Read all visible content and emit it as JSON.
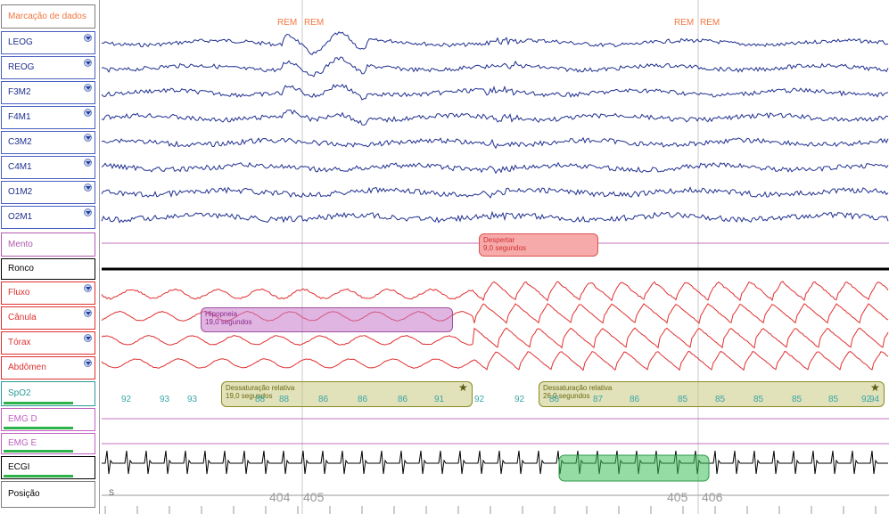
{
  "channels": [
    {
      "label": "Marcação de dados",
      "color": "#f07840",
      "border": "#7f7f7f",
      "dropdown": false,
      "bar": ""
    },
    {
      "label": "LEOG",
      "color": "#1f2f8f",
      "border": "#4a5fc0",
      "dropdown": true,
      "bar": ""
    },
    {
      "label": "REOG",
      "color": "#1f2f8f",
      "border": "#4a5fc0",
      "dropdown": true,
      "bar": ""
    },
    {
      "label": "F3M2",
      "color": "#1f2f8f",
      "border": "#4a5fc0",
      "dropdown": true,
      "bar": ""
    },
    {
      "label": "F4M1",
      "color": "#1f2f8f",
      "border": "#4a5fc0",
      "dropdown": true,
      "bar": ""
    },
    {
      "label": "C3M2",
      "color": "#1f2f8f",
      "border": "#4a5fc0",
      "dropdown": true,
      "bar": ""
    },
    {
      "label": "C4M1",
      "color": "#1f2f8f",
      "border": "#4a5fc0",
      "dropdown": true,
      "bar": ""
    },
    {
      "label": "O1M2",
      "color": "#1f2f8f",
      "border": "#4a5fc0",
      "dropdown": true,
      "bar": ""
    },
    {
      "label": "O2M1",
      "color": "#1f2f8f",
      "border": "#4a5fc0",
      "dropdown": true,
      "bar": ""
    },
    {
      "label": "Mento",
      "color": "#b05ab0",
      "border": "#b05ab0",
      "dropdown": false,
      "bar": ""
    },
    {
      "label": "Ronco",
      "color": "#000000",
      "border": "#000000",
      "dropdown": false,
      "bar": ""
    },
    {
      "label": "Fluxo",
      "color": "#e03030",
      "border": "#e03030",
      "dropdown": true,
      "bar": ""
    },
    {
      "label": "Cânula",
      "color": "#e03030",
      "border": "#e03030",
      "dropdown": true,
      "bar": ""
    },
    {
      "label": "Tórax",
      "color": "#e03030",
      "border": "#e03030",
      "dropdown": true,
      "bar": ""
    },
    {
      "label": "Abdômen",
      "color": "#e03030",
      "border": "#e03030",
      "dropdown": true,
      "bar": ""
    },
    {
      "label": "SpO2",
      "color": "#2a9a9a",
      "border": "#2a9a9a",
      "dropdown": false,
      "bar": "#2db34a"
    },
    {
      "label": "EMG D",
      "color": "#c060c0",
      "border": "#c060c0",
      "dropdown": false,
      "bar": "#2db34a"
    },
    {
      "label": "EMG E",
      "color": "#c060c0",
      "border": "#c060c0",
      "dropdown": false,
      "bar": "#2db34a"
    },
    {
      "label": "ECGI",
      "color": "#000000",
      "border": "#000000",
      "dropdown": false,
      "bar": "#2db34a"
    },
    {
      "label": "Posição",
      "color": "#000000",
      "border": "#7f7f7f",
      "dropdown": false,
      "bar": ""
    }
  ],
  "markers": {
    "rem_left_1": "REM",
    "rem_left_2": "REM",
    "rem_right_1": "REM",
    "rem_right_2": "REM"
  },
  "events": {
    "despertar": {
      "title": "Despertar",
      "duration": "9,0 segundos"
    },
    "hipopneia": {
      "title": "Hipopneia",
      "duration": "19,0 segundos"
    },
    "dessat1": {
      "title": "Dessaturação relativa",
      "duration": "19,0 segundos",
      "star": "★"
    },
    "dessat2": {
      "title": "Dessaturação relativa",
      "duration": "26,0 segundos",
      "star": "★"
    }
  },
  "spo2_values": [
    "92",
    "93",
    "93",
    "88",
    "88",
    "86",
    "86",
    "86",
    "91",
    "92",
    "92",
    "88",
    "87",
    "86",
    "85",
    "85",
    "85",
    "85",
    "85",
    "92",
    "94"
  ],
  "epochs": {
    "left_a": "404",
    "left_b": "405",
    "right_a": "405",
    "right_b": "406"
  },
  "position_label": "S",
  "colors": {
    "eeg": "#1f2f8f",
    "resp": "#e03030",
    "ecg": "#000000",
    "grid": "#c8c8c8"
  }
}
